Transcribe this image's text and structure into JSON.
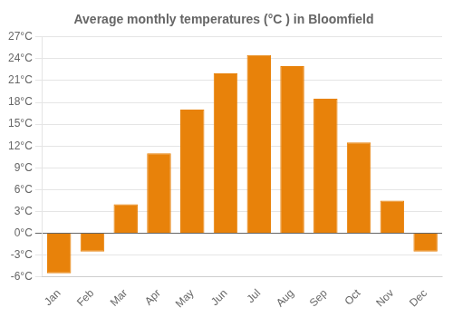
{
  "chart_data": {
    "type": "bar",
    "title": "Average monthly temperatures (°C ) in Bloomfield",
    "categories": [
      "Jan",
      "Feb",
      "Mar",
      "Apr",
      "May",
      "Jun",
      "Jul",
      "Aug",
      "Sep",
      "Oct",
      "Nov",
      "Dec"
    ],
    "values": [
      -5.5,
      -2.5,
      4.0,
      11.0,
      17.0,
      22.0,
      24.5,
      23.0,
      18.5,
      12.5,
      4.5,
      -2.5
    ],
    "color": "#E8820A",
    "ylim": [
      -6,
      27
    ],
    "yticks": [
      {
        "value": -6,
        "label": "-6°C"
      },
      {
        "value": -3,
        "label": "-3°C"
      },
      {
        "value": 0,
        "label": "0°C"
      },
      {
        "value": 3,
        "label": "3°C"
      },
      {
        "value": 6,
        "label": "6°C"
      },
      {
        "value": 9,
        "label": "9°C"
      },
      {
        "value": 12,
        "label": "12°C"
      },
      {
        "value": 15,
        "label": "15°C"
      },
      {
        "value": 18,
        "label": "18°C"
      },
      {
        "value": 21,
        "label": "21°C"
      },
      {
        "value": 24,
        "label": "24°C"
      },
      {
        "value": 27,
        "label": "27°C"
      }
    ],
    "grid": true
  }
}
